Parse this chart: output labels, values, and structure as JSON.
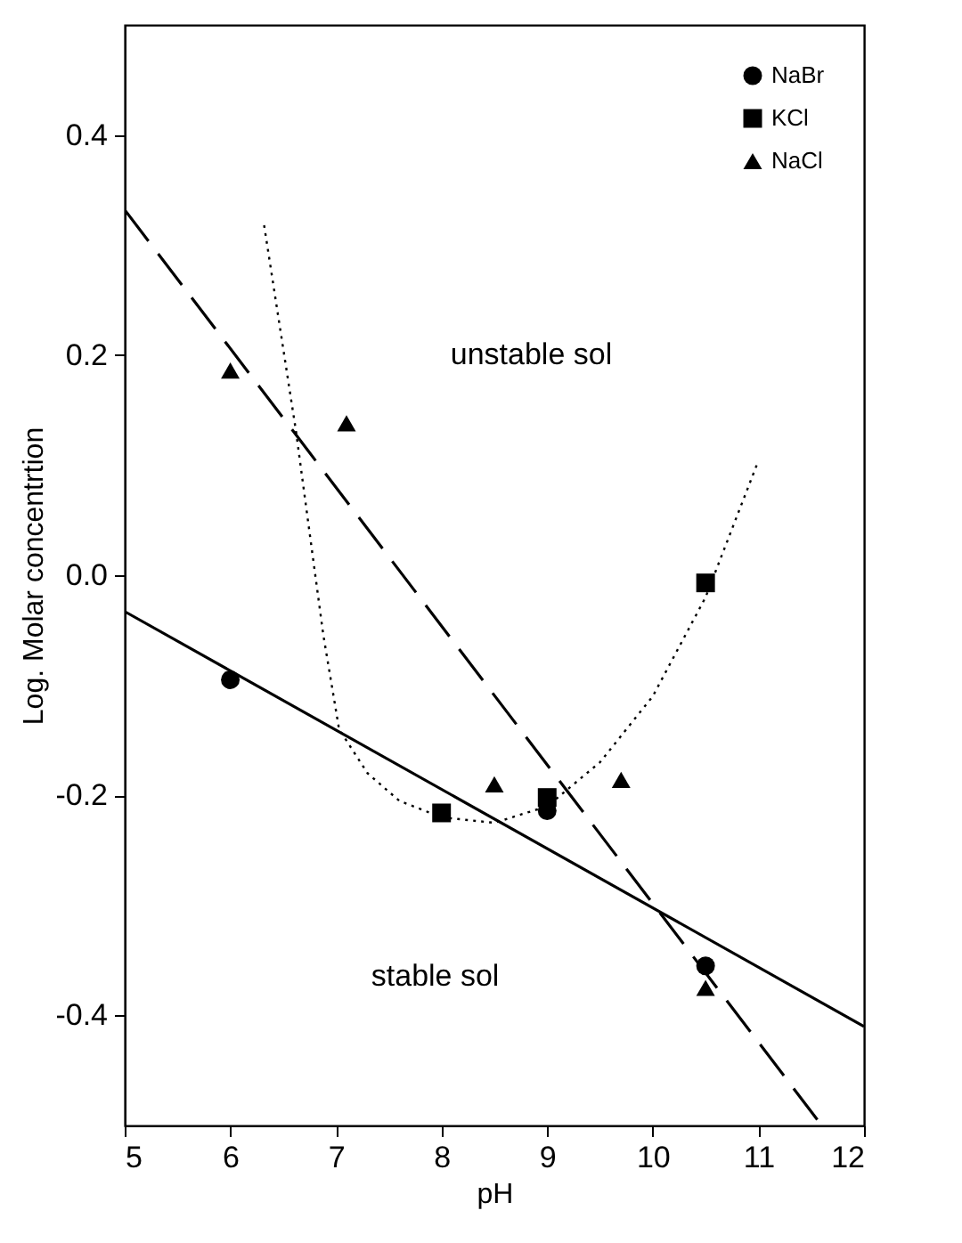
{
  "chart_data": {
    "type": "scatter",
    "xlabel": "pH",
    "ylabel": "Log. Molar concentrtion",
    "xlim": [
      5,
      12
    ],
    "xticks": [
      5,
      6,
      7,
      8,
      9,
      10,
      11,
      12
    ],
    "ylim": [
      -0.5,
      0.5
    ],
    "yticks": [
      {
        "value": -0.4,
        "label": "-0.4"
      },
      {
        "value": -0.2,
        "label": "-0.2"
      },
      {
        "value": 0,
        "label": "0.0"
      },
      {
        "value": 0.2,
        "label": "0.2"
      },
      {
        "value": 0.4,
        "label": "0.4"
      }
    ],
    "grid": false,
    "legend": "top right",
    "annotations": [
      "unstable sol",
      "stable sol"
    ],
    "series": [
      {
        "name": "NaBr",
        "marker": "circle",
        "color": "#000000",
        "x": [
          6,
          9,
          10.5
        ],
        "values": [
          -0.095,
          -0.214,
          -0.355
        ]
      },
      {
        "name": "KCl",
        "marker": "square",
        "color": "#000000",
        "x": [
          8,
          9,
          10.5
        ],
        "values": [
          -0.216,
          -0.202,
          -0.007
        ]
      },
      {
        "name": "NaCl",
        "marker": "triangle",
        "color": "#000000",
        "x": [
          6,
          7.1,
          8.5,
          9.7,
          10.5
        ],
        "values": [
          0.186,
          0.138,
          -0.19,
          -0.186,
          -0.375
        ]
      },
      {
        "type": "line",
        "line_style": "solid",
        "color": "#000000",
        "x": [
          5,
          12
        ],
        "values": [
          -0.033,
          -0.41
        ]
      },
      {
        "type": "line",
        "line_style": "dashed",
        "color": "#000000",
        "x": [
          5,
          11.6
        ],
        "values": [
          0.332,
          -0.5
        ]
      },
      {
        "type": "line",
        "line_style": "dotted",
        "color": "#000000",
        "x": [
          6.32,
          6.62,
          6.88,
          7.03,
          7.3,
          7.6,
          8,
          8.5,
          9,
          9.5,
          10,
          10.5,
          11
        ],
        "values": [
          0.318,
          0.132,
          -0.054,
          -0.14,
          -0.18,
          -0.205,
          -0.22,
          -0.225,
          -0.21,
          -0.17,
          -0.11,
          -0.02,
          0.104
        ]
      }
    ]
  }
}
